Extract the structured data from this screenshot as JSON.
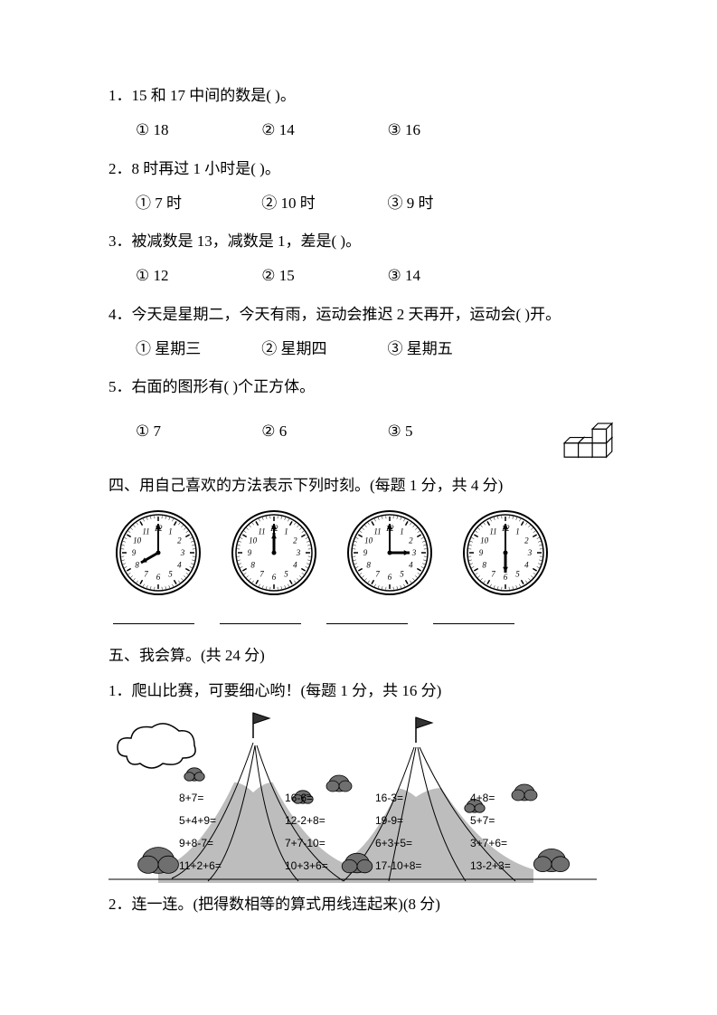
{
  "q1": {
    "num": "1．",
    "text": "15 和 17 中间的数是(      )。",
    "o1": "① 18",
    "o2": "② 14",
    "o3": "③ 16"
  },
  "q2": {
    "num": "2．",
    "text": "8 时再过 1 小时是(      )。",
    "o1": "① 7 时",
    "o2": "② 10 时",
    "o3": "③ 9 时"
  },
  "q3": {
    "num": "3．",
    "text": "被减数是 13，减数是 1，差是(      )。",
    "o1": "① 12",
    "o2": "② 15",
    "o3": "③ 14"
  },
  "q4": {
    "num": "4．",
    "text": "今天是星期二，今天有雨，运动会推迟 2 天再开，运动会(      )开。",
    "o1": "① 星期三",
    "o2": "② 星期四",
    "o3": "③ 星期五"
  },
  "q5": {
    "num": "5．",
    "text": "右面的图形有(     )个正方体。",
    "o1": "① 7",
    "o2": "② 6",
    "o3": "③ 5"
  },
  "sec4": "四、用自己喜欢的方法表示下列时刻。(每题 1 分，共 4 分)",
  "clocks": [
    {
      "hour": 8,
      "min": 0
    },
    {
      "hour": 12,
      "min": 0
    },
    {
      "hour": 3,
      "min": 0
    },
    {
      "hour": 6,
      "min": 0
    }
  ],
  "sec5": "五、我会算。(共 24 分)",
  "q5_1": "1．爬山比赛，可要细心哟！(每题 1 分，共 16 分)",
  "mountain": {
    "cols": [
      [
        "8+7=",
        "5+4+9=",
        "9+8-7=",
        "11+2+6="
      ],
      [
        "16-6=",
        "12-2+8=",
        "7+7-10=",
        "10+3+6="
      ],
      [
        "16-3=",
        "19-9=",
        "6+3+5=",
        "17-10+8="
      ],
      [
        "4+8=",
        "5+7=",
        "3+7+6=",
        "13-2+3="
      ]
    ]
  },
  "q5_2": "2．连一连。(把得数相等的算式用线连起来)(8 分)",
  "colors": {
    "stroke": "#000000",
    "fill_gray": "#bdbdbd",
    "fill_dark": "#6f6f6f",
    "bg": "#ffffff"
  }
}
